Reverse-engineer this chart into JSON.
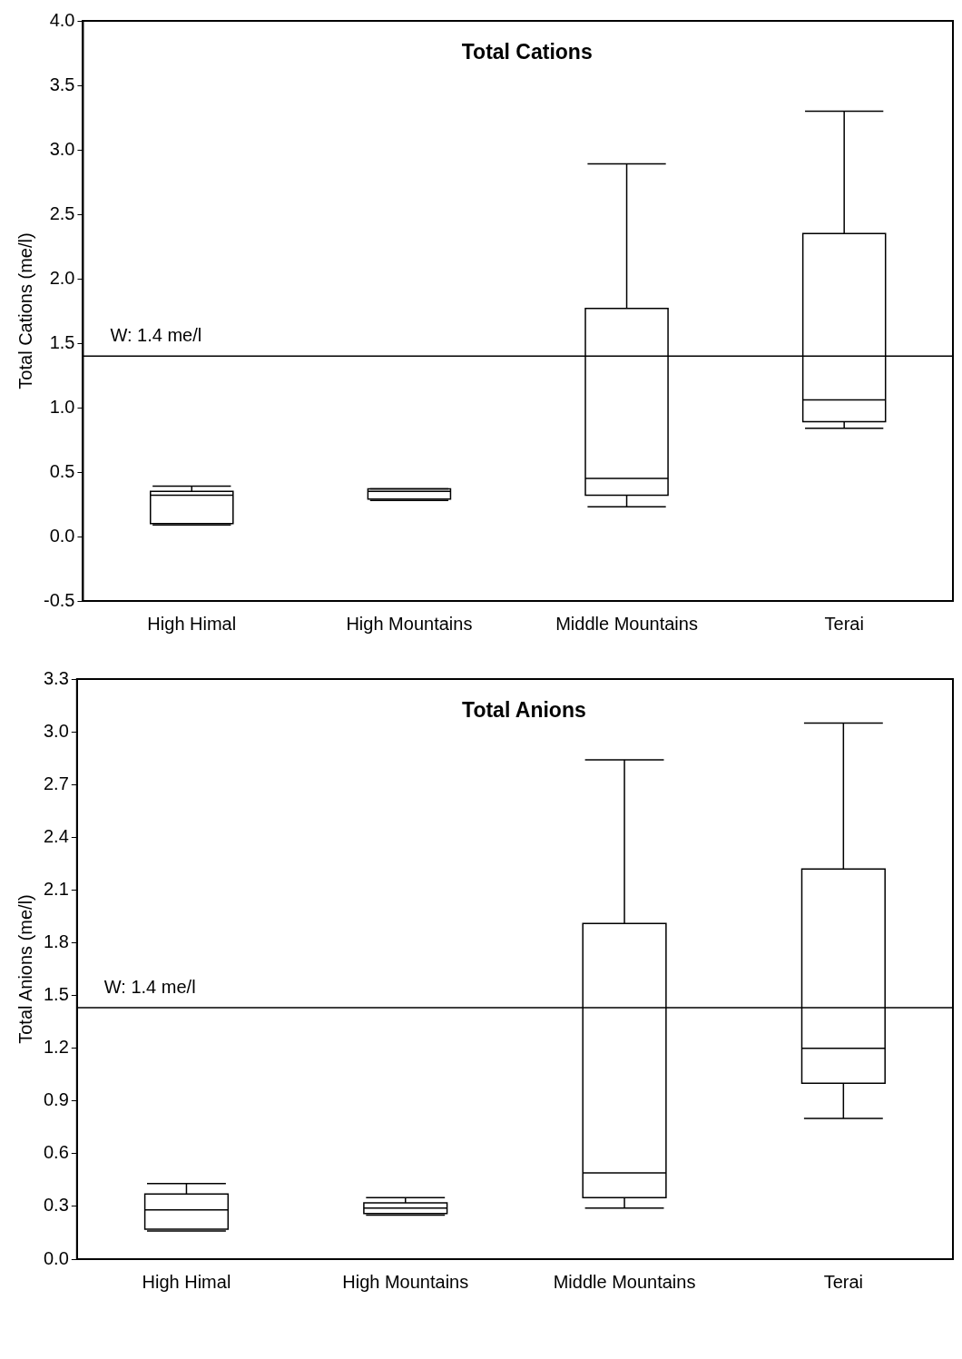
{
  "chart_data": [
    {
      "type": "box",
      "title": "Total Cations",
      "ylabel": "Total Cations (me/l)",
      "categories": [
        "High Himal",
        "High Mountains",
        "Middle Mountains",
        "Terai"
      ],
      "boxes": [
        {
          "low": 0.09,
          "q1": 0.1,
          "median": 0.32,
          "q3": 0.35,
          "high": 0.39
        },
        {
          "low": 0.28,
          "q1": 0.29,
          "median": 0.35,
          "q3": 0.37,
          "high": 0.37
        },
        {
          "low": 0.23,
          "q1": 0.32,
          "median": 0.45,
          "q3": 1.77,
          "high": 2.89
        },
        {
          "low": 0.84,
          "q1": 0.89,
          "median": 1.06,
          "q3": 2.35,
          "high": 3.3
        }
      ],
      "ylim": [
        -0.5,
        4.0
      ],
      "yticks": [
        {
          "value": -0.5,
          "label": "-0.5"
        },
        {
          "value": 0,
          "label": "0.0"
        },
        {
          "value": 0.5,
          "label": "0.5"
        },
        {
          "value": 1,
          "label": "1.0"
        },
        {
          "value": 1.5,
          "label": "1.5"
        },
        {
          "value": 2,
          "label": "2.0"
        },
        {
          "value": 2.5,
          "label": "2.5"
        },
        {
          "value": 3,
          "label": "3.0"
        },
        {
          "value": 3.5,
          "label": "3.5"
        },
        {
          "value": 4,
          "label": "4.0"
        }
      ],
      "ref_lines": [
        {
          "axis": "y",
          "value": 1.4,
          "label": "W: 1.4 me/l",
          "color": "#000000"
        }
      ],
      "color": "#000000",
      "grid": false,
      "legend": false
    },
    {
      "type": "box",
      "title": "Total Anions",
      "ylabel": "Total Anions (me/l)",
      "categories": [
        "High Himal",
        "High Mountains",
        "Middle Mountains",
        "Terai"
      ],
      "boxes": [
        {
          "low": 0.16,
          "q1": 0.17,
          "median": 0.28,
          "q3": 0.37,
          "high": 0.43
        },
        {
          "low": 0.25,
          "q1": 0.26,
          "median": 0.29,
          "q3": 0.32,
          "high": 0.35
        },
        {
          "low": 0.29,
          "q1": 0.35,
          "median": 0.49,
          "q3": 1.91,
          "high": 2.84
        },
        {
          "low": 0.8,
          "q1": 1.0,
          "median": 1.2,
          "q3": 2.22,
          "high": 3.05
        }
      ],
      "ylim": [
        0,
        3.3
      ],
      "yticks": [
        {
          "value": 0,
          "label": "0.0"
        },
        0.3,
        0.6,
        0.9,
        1.2,
        1.5,
        1.8,
        2.1,
        2.4,
        2.7,
        {
          "value": 3,
          "label": "3.0"
        },
        3.3
      ],
      "ref_lines": [
        {
          "axis": "y",
          "value": 1.43,
          "label": "W: 1.4 me/l",
          "color": "#000000"
        }
      ],
      "color": "#000000",
      "grid": false,
      "legend": false
    }
  ]
}
